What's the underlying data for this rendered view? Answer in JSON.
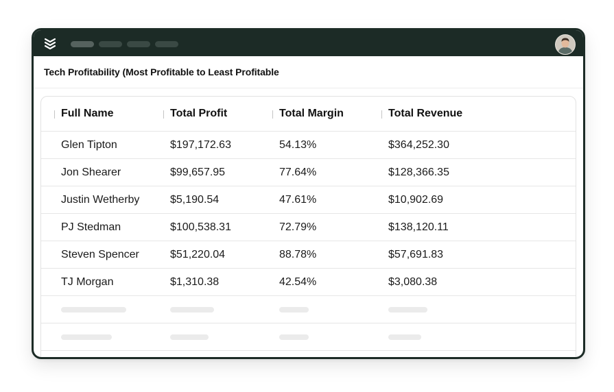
{
  "page": {
    "title": "Tech Profitability (Most Profitable to Least Profitable"
  },
  "topbar": {
    "logo_icon": "stacked-chevrons-logo-icon",
    "background": "#1c2b26",
    "avatar_icon": "user-avatar-icon"
  },
  "table": {
    "columns": [
      "Full Name",
      "Total Profit",
      "Total Margin",
      "Total Revenue"
    ],
    "rows": [
      [
        "Glen Tipton",
        "$197,172.63",
        "54.13%",
        "$364,252.30"
      ],
      [
        "Jon Shearer",
        "$99,657.95",
        "77.64%",
        "$128,366.35"
      ],
      [
        "Justin Wetherby",
        "$5,190.54",
        "47.61%",
        "$10,902.69"
      ],
      [
        "PJ Stedman",
        "$100,538.31",
        "72.79%",
        "$138,120.11"
      ],
      [
        "Steven Spencer",
        "$51,220.04",
        "88.78%",
        "$57,691.83"
      ],
      [
        "TJ Morgan",
        "$1,310.38",
        "42.54%",
        "$3,080.38"
      ]
    ]
  }
}
